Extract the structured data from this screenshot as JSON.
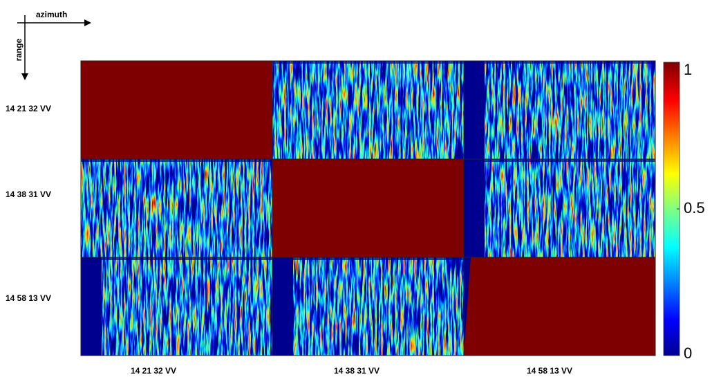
{
  "axes": {
    "horizontal": "azimuth",
    "vertical": "range"
  },
  "rows": [
    "14 21 32 VV",
    "14 38 31 VV",
    "14 58 13 VV"
  ],
  "columns": [
    "14 21 32 VV",
    "14 38 31 VV",
    "14 58 13 VV"
  ],
  "colorbar": {
    "lim": [
      0,
      1
    ],
    "ticks": [
      0,
      0.5,
      1
    ]
  }
}
